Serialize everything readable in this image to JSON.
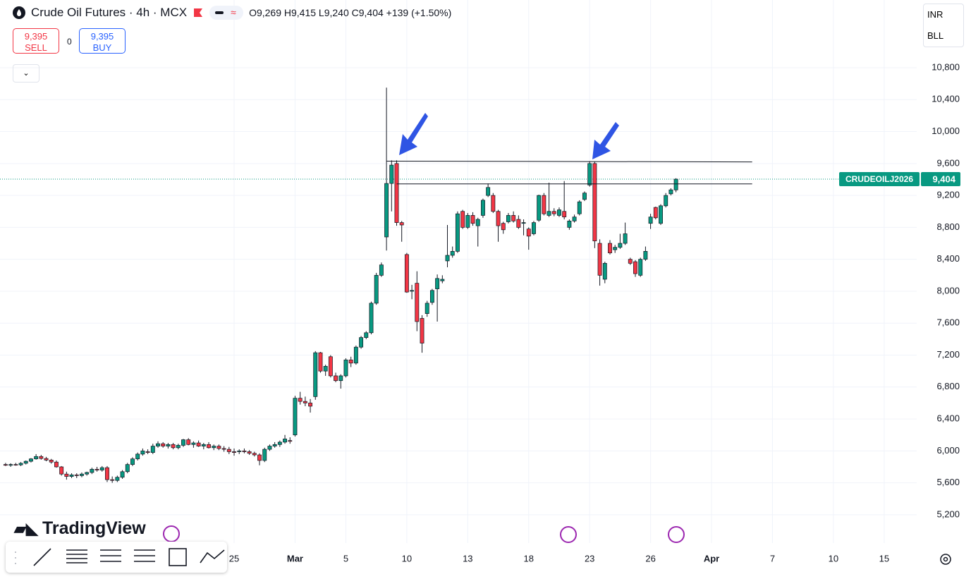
{
  "header": {
    "title": "Crude Oil Futures · 4h · MCX",
    "ohlc": "O9,269 H9,415 L9,240 C9,404 +139 (+1.50%)",
    "currency": "INR",
    "unit": "BLL"
  },
  "trading": {
    "sell_price": "9,395",
    "sell_label": "SELL",
    "spread": "0",
    "buy_price": "9,395",
    "buy_label": "BUY"
  },
  "brand": "TradingView",
  "chart_data": {
    "type": "candlestick",
    "up_color": "#089981",
    "down_color": "#f23645",
    "grid": true,
    "xlim": [
      -1.1,
      179.4
    ],
    "ylim": [
      4846,
      11648
    ],
    "yticks": [
      {
        "value": 5200,
        "label": "5,200"
      },
      {
        "value": 5600,
        "label": "5,600"
      },
      {
        "value": 6000,
        "label": "6,000"
      },
      {
        "value": 6400,
        "label": "6,400"
      },
      {
        "value": 6800,
        "label": "6,800"
      },
      {
        "value": 7200,
        "label": "7,200"
      },
      {
        "value": 7600,
        "label": "7,600"
      },
      {
        "value": 8000,
        "label": "8,000"
      },
      {
        "value": 8400,
        "label": "8,400"
      },
      {
        "value": 8800,
        "label": "8,800"
      },
      {
        "value": 9200,
        "label": "9,200"
      },
      {
        "value": 9600,
        "label": "9,600"
      },
      {
        "value": 10000,
        "label": "10,000"
      },
      {
        "value": 10400,
        "label": "10,400"
      },
      {
        "value": 10800,
        "label": "10,800"
      }
    ],
    "xticks": [
      {
        "value": 45,
        "label": "25"
      },
      {
        "value": 57,
        "label": "Mar"
      },
      {
        "value": 67,
        "label": "5"
      },
      {
        "value": 79,
        "label": "10"
      },
      {
        "value": 91,
        "label": "13"
      },
      {
        "value": 103,
        "label": "18"
      },
      {
        "value": 115,
        "label": "23"
      },
      {
        "value": 127,
        "label": "26"
      },
      {
        "value": 139,
        "label": "Apr"
      },
      {
        "value": 151,
        "label": "7"
      },
      {
        "value": 163,
        "label": "10"
      },
      {
        "value": 173,
        "label": "15"
      }
    ],
    "last_price": {
      "value": 9404,
      "label": "9,404"
    },
    "symbol_tag": "CRUDEOILJ2026",
    "trend_lines": [
      {
        "x": [
          75,
          147
        ],
        "y": [
          9630,
          9620
        ]
      },
      {
        "x": [
          77,
          147
        ],
        "y": [
          9345,
          9345
        ]
      }
    ],
    "candles": [
      [
        5830,
        5850,
        5810,
        5820
      ],
      [
        5820,
        5845,
        5800,
        5830
      ],
      [
        5830,
        5850,
        5815,
        5825
      ],
      [
        5825,
        5860,
        5810,
        5845
      ],
      [
        5845,
        5880,
        5830,
        5870
      ],
      [
        5870,
        5910,
        5855,
        5900
      ],
      [
        5900,
        5960,
        5890,
        5930
      ],
      [
        5930,
        5950,
        5890,
        5905
      ],
      [
        5905,
        5925,
        5870,
        5885
      ],
      [
        5885,
        5900,
        5840,
        5860
      ],
      [
        5860,
        5880,
        5790,
        5800
      ],
      [
        5800,
        5810,
        5690,
        5710
      ],
      [
        5710,
        5740,
        5640,
        5680
      ],
      [
        5680,
        5720,
        5660,
        5700
      ],
      [
        5700,
        5720,
        5660,
        5690
      ],
      [
        5690,
        5730,
        5670,
        5710
      ],
      [
        5710,
        5740,
        5690,
        5730
      ],
      [
        5730,
        5790,
        5710,
        5770
      ],
      [
        5770,
        5800,
        5740,
        5760
      ],
      [
        5760,
        5810,
        5740,
        5790
      ],
      [
        5790,
        5810,
        5610,
        5640
      ],
      [
        5640,
        5680,
        5600,
        5630
      ],
      [
        5630,
        5690,
        5610,
        5670
      ],
      [
        5670,
        5760,
        5650,
        5740
      ],
      [
        5740,
        5850,
        5720,
        5830
      ],
      [
        5830,
        5920,
        5810,
        5900
      ],
      [
        5900,
        5980,
        5880,
        5960
      ],
      [
        5960,
        6030,
        5940,
        6000
      ],
      [
        5990,
        6020,
        5960,
        5980
      ],
      [
        5980,
        6090,
        5960,
        6060
      ],
      [
        6060,
        6120,
        6040,
        6090
      ],
      [
        6090,
        6110,
        6040,
        6060
      ],
      [
        6060,
        6100,
        6030,
        6080
      ],
      [
        6080,
        6100,
        6020,
        6040
      ],
      [
        6040,
        6090,
        6020,
        6070
      ],
      [
        6070,
        6150,
        6050,
        6140
      ],
      [
        6140,
        6160,
        6070,
        6080
      ],
      [
        6080,
        6120,
        6040,
        6100
      ],
      [
        6100,
        6130,
        6050,
        6060
      ],
      [
        6060,
        6100,
        6020,
        6080
      ],
      [
        6080,
        6110,
        6030,
        6040
      ],
      [
        6040,
        6080,
        6010,
        6060
      ],
      [
        6060,
        6080,
        6010,
        6030
      ],
      [
        6030,
        6060,
        5990,
        6020
      ],
      [
        6020,
        6050,
        5960,
        5990
      ],
      [
        5990,
        6030,
        5940,
        5980
      ],
      [
        5990,
        6020,
        5960,
        6000
      ],
      [
        6000,
        6030,
        5970,
        5990
      ],
      [
        5990,
        6010,
        5950,
        5970
      ],
      [
        5970,
        5990,
        5930,
        5950
      ],
      [
        5950,
        5970,
        5820,
        5880
      ],
      [
        5880,
        6040,
        5860,
        6020
      ],
      [
        6020,
        6080,
        6000,
        6060
      ],
      [
        6060,
        6110,
        6040,
        6080
      ],
      [
        6080,
        6130,
        6050,
        6110
      ],
      [
        6110,
        6200,
        6090,
        6150
      ],
      [
        6130,
        6170,
        6090,
        6120
      ],
      [
        6200,
        6690,
        6180,
        6660
      ],
      [
        6660,
        6740,
        6580,
        6620
      ],
      [
        6620,
        6680,
        6560,
        6600
      ],
      [
        6600,
        6650,
        6480,
        6560
      ],
      [
        6680,
        7250,
        6640,
        7230
      ],
      [
        7230,
        7240,
        6980,
        7000
      ],
      [
        7000,
        7080,
        6940,
        7060
      ],
      [
        7180,
        7200,
        6920,
        6940
      ],
      [
        6940,
        6980,
        6860,
        6880
      ],
      [
        6880,
        6960,
        6780,
        6940
      ],
      [
        6940,
        7160,
        6920,
        7140
      ],
      [
        7140,
        7180,
        7050,
        7100
      ],
      [
        7100,
        7320,
        7080,
        7300
      ],
      [
        7300,
        7440,
        7280,
        7420
      ],
      [
        7420,
        7500,
        7400,
        7480
      ],
      [
        7480,
        7870,
        7460,
        7850
      ],
      [
        7850,
        8230,
        7830,
        8200
      ],
      [
        8200,
        8360,
        8180,
        8330
      ],
      [
        8680,
        10550,
        8510,
        9350
      ],
      [
        9350,
        9640,
        9000,
        9580
      ],
      [
        9600,
        9640,
        8820,
        8860
      ],
      [
        8860,
        8880,
        8620,
        8830
      ],
      [
        8460,
        8480,
        7980,
        7990
      ],
      [
        8000,
        8080,
        7900,
        8010
      ],
      [
        8100,
        8250,
        7500,
        7620
      ],
      [
        7660,
        7700,
        7230,
        7350
      ],
      [
        7720,
        7880,
        7680,
        7850
      ],
      [
        7860,
        8030,
        7830,
        8010
      ],
      [
        8030,
        8210,
        7620,
        8160
      ],
      [
        8130,
        8200,
        8100,
        8150
      ],
      [
        8380,
        8830,
        8300,
        8450
      ],
      [
        8450,
        8560,
        8420,
        8500
      ],
      [
        8500,
        9000,
        8480,
        8970
      ],
      [
        9000,
        9020,
        8780,
        8800
      ],
      [
        8800,
        8980,
        8780,
        8950
      ],
      [
        8950,
        8990,
        8820,
        8850
      ],
      [
        8820,
        8920,
        8560,
        8900
      ],
      [
        8950,
        9160,
        8920,
        9140
      ],
      [
        9200,
        9350,
        9180,
        9300
      ],
      [
        9200,
        9230,
        8980,
        9000
      ],
      [
        9000,
        9020,
        8620,
        8820
      ],
      [
        8850,
        8870,
        8720,
        8770
      ],
      [
        8870,
        8980,
        8850,
        8950
      ],
      [
        8950,
        9000,
        8860,
        8880
      ],
      [
        8900,
        8950,
        8780,
        8800
      ],
      [
        8850,
        8900,
        8700,
        8860
      ],
      [
        8780,
        8800,
        8520,
        8690
      ],
      [
        8720,
        8880,
        8700,
        8860
      ],
      [
        8890,
        9210,
        8870,
        9200
      ],
      [
        9200,
        9230,
        8950,
        8970
      ],
      [
        8950,
        9360,
        8930,
        9000
      ],
      [
        9000,
        9040,
        8940,
        8970
      ],
      [
        8950,
        9050,
        8930,
        9020
      ],
      [
        9000,
        9380,
        8900,
        8930
      ],
      [
        8800,
        8900,
        8770,
        8880
      ],
      [
        8880,
        8960,
        8860,
        8930
      ],
      [
        8970,
        9140,
        8950,
        9120
      ],
      [
        9150,
        9250,
        9130,
        9230
      ],
      [
        9330,
        9630,
        9310,
        9600
      ],
      [
        9600,
        9620,
        8540,
        8630
      ],
      [
        8600,
        8650,
        8070,
        8200
      ],
      [
        8150,
        8370,
        8100,
        8350
      ],
      [
        8600,
        8640,
        8460,
        8480
      ],
      [
        8520,
        8580,
        8480,
        8550
      ],
      [
        8550,
        8720,
        8530,
        8600
      ],
      [
        8600,
        8860,
        8580,
        8720
      ],
      [
        8400,
        8420,
        8330,
        8350
      ],
      [
        8370,
        8390,
        8180,
        8220
      ],
      [
        8200,
        8420,
        8180,
        8400
      ],
      [
        8400,
        8560,
        8380,
        8500
      ],
      [
        8850,
        8970,
        8780,
        8930
      ],
      [
        9050,
        9060,
        8900,
        8920
      ],
      [
        8850,
        9090,
        8830,
        9070
      ],
      [
        9070,
        9230,
        9050,
        9200
      ],
      [
        9220,
        9290,
        9200,
        9270
      ],
      [
        9269,
        9415,
        9240,
        9404
      ]
    ]
  }
}
